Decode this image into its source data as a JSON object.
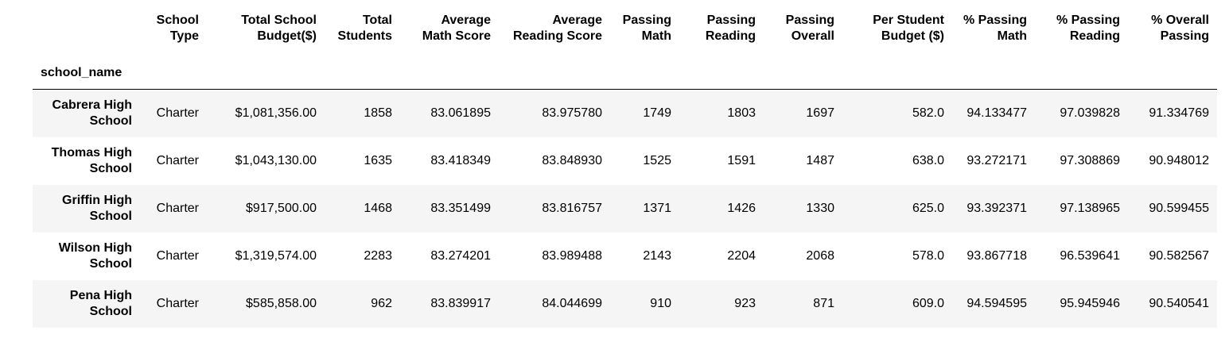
{
  "table": {
    "index_name": "school_name",
    "columns": [
      "School Type",
      "Total School Budget($)",
      "Total Students",
      "Average Math Score",
      "Average Reading Score",
      "Passing Math",
      "Passing Reading",
      "Passing Overall",
      "Per Student Budget ($)",
      "% Passing Math",
      "% Passing Reading",
      "% Overall Passing"
    ],
    "rows": [
      {
        "school_name": "Cabrera High School",
        "cells": [
          "Charter",
          "$1,081,356.00",
          "1858",
          "83.061895",
          "83.975780",
          "1749",
          "1803",
          "1697",
          "582.0",
          "94.133477",
          "97.039828",
          "91.334769"
        ]
      },
      {
        "school_name": "Thomas High School",
        "cells": [
          "Charter",
          "$1,043,130.00",
          "1635",
          "83.418349",
          "83.848930",
          "1525",
          "1591",
          "1487",
          "638.0",
          "93.272171",
          "97.308869",
          "90.948012"
        ]
      },
      {
        "school_name": "Griffin High School",
        "cells": [
          "Charter",
          "$917,500.00",
          "1468",
          "83.351499",
          "83.816757",
          "1371",
          "1426",
          "1330",
          "625.0",
          "93.392371",
          "97.138965",
          "90.599455"
        ]
      },
      {
        "school_name": "Wilson High School",
        "cells": [
          "Charter",
          "$1,319,574.00",
          "2283",
          "83.274201",
          "83.989488",
          "2143",
          "2204",
          "2068",
          "578.0",
          "93.867718",
          "96.539641",
          "90.582567"
        ]
      },
      {
        "school_name": "Pena High School",
        "cells": [
          "Charter",
          "$585,858.00",
          "962",
          "83.839917",
          "84.044699",
          "910",
          "923",
          "871",
          "609.0",
          "94.594595",
          "95.945946",
          "90.540541"
        ]
      }
    ]
  }
}
